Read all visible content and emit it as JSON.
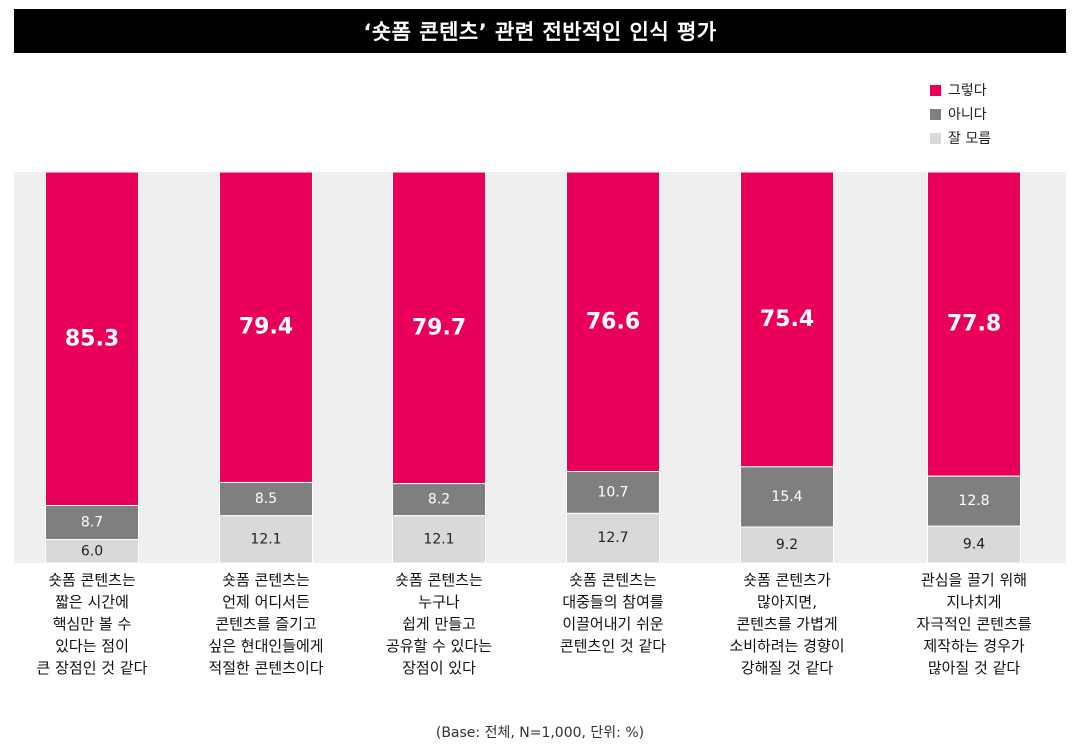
{
  "title": "‘숏폼 콘텐츠’ 관련 전반적인 인식 평가",
  "footer": "(Base: 전체, N=1,000, 단위: %)",
  "colors": {
    "yes": "#e8005a",
    "no": "#7f7f7f",
    "unsure": "#d9d9d9",
    "plot_bg": "#efefef"
  },
  "chart_data": {
    "type": "bar",
    "stacked": true,
    "title": "‘숏폼 콘텐츠’ 관련 전반적인 인식 평가",
    "categories": [
      [
        "숏폼 콘텐츠는",
        "짧은 시간에",
        "핵심만 볼 수",
        "있다는 점이",
        "큰 장점인 것 같다"
      ],
      [
        "숏폼 콘텐츠는",
        "언제 어디서든",
        "콘텐츠를 즐기고",
        "싶은 현대인들에게",
        "적절한 콘텐츠이다"
      ],
      [
        "숏폼 콘텐츠는",
        "누구나",
        "쉽게 만들고",
        "공유할 수 있다는",
        "장점이 있다"
      ],
      [
        "숏폼 콘텐츠는",
        "대중들의 참여를",
        "이끌어내기 쉬운",
        "콘텐츠인 것 같다"
      ],
      [
        "숏폼 콘텐츠가",
        "많아지면,",
        "콘텐츠를 가볍게",
        "소비하려는 경향이",
        "강해질 것 같다"
      ],
      [
        "관심을 끌기 위해",
        "지나치게",
        "자극적인 콘텐츠를",
        "제작하는 경우가",
        "많아질 것 같다"
      ]
    ],
    "series": [
      {
        "name": "그렇다",
        "values": [
          85.3,
          79.4,
          79.7,
          76.6,
          75.4,
          77.8
        ]
      },
      {
        "name": "아니다",
        "values": [
          8.7,
          8.5,
          8.2,
          10.7,
          15.4,
          12.8
        ]
      },
      {
        "name": "잘 모름",
        "values": [
          6.0,
          12.1,
          12.1,
          12.7,
          9.2,
          9.4
        ]
      }
    ],
    "value_labels": {
      "그렇다": [
        "85.3",
        "79.4",
        "79.7",
        "76.6",
        "75.4",
        "77.8"
      ],
      "아니다": [
        "8.7",
        "8.5",
        "8.2",
        "10.7",
        "15.4",
        "12.8"
      ],
      "잘 모름": [
        "6.0",
        "12.1",
        "12.1",
        "12.7",
        "9.2",
        "9.4"
      ]
    },
    "ylim": [
      0,
      100
    ],
    "legend": "top-right",
    "grid": false,
    "unit": "%"
  }
}
